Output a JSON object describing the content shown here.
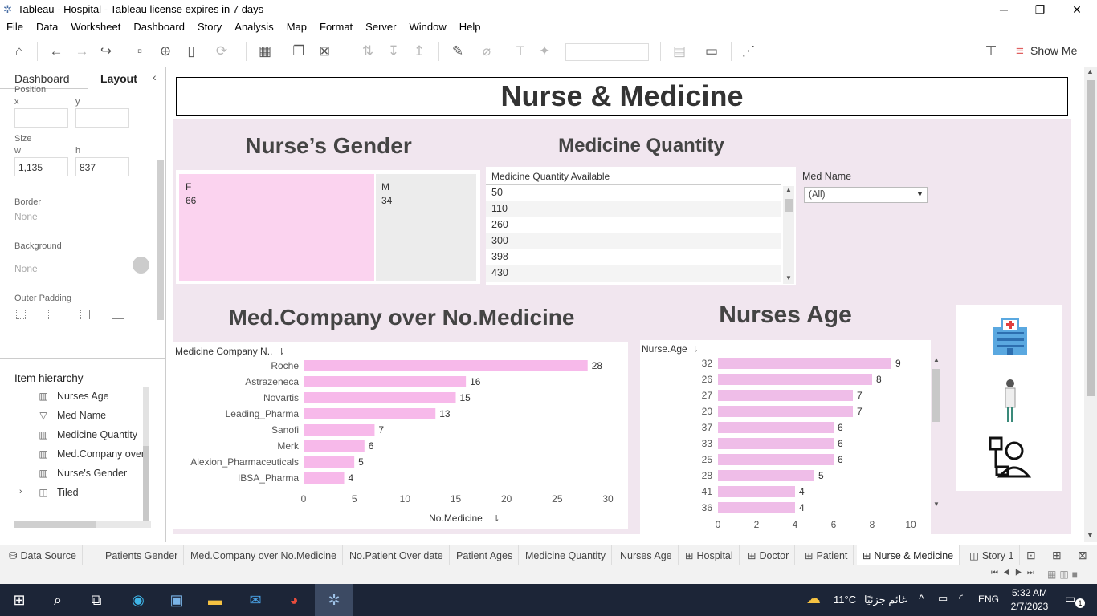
{
  "window": {
    "title": "Tableau - Hospital - Tableau license expires in 7 days",
    "minimize": "─",
    "maximize": "❐",
    "close": "✕"
  },
  "menu": [
    "File",
    "Data",
    "Worksheet",
    "Dashboard",
    "Story",
    "Analysis",
    "Map",
    "Format",
    "Server",
    "Window",
    "Help"
  ],
  "toolbar": {
    "show_me": "Show Me"
  },
  "left_pane": {
    "tabs": {
      "dashboard": "Dashboard",
      "layout": "Layout"
    },
    "position_label": "Position",
    "x_label": "x",
    "y_label": "y",
    "size_label": "Size",
    "w_label": "w",
    "h_label": "h",
    "w_value": "1,135",
    "h_value": "837",
    "border_label": "Border",
    "border_value": "None",
    "background_label": "Background",
    "background_value": "None",
    "outer_padding_label": "Outer Padding",
    "item_hierarchy_title": "Item hierarchy",
    "hierarchy": [
      {
        "label": "Nurses Age",
        "icon": "chart-icon"
      },
      {
        "label": "Med Name",
        "icon": "filter-icon"
      },
      {
        "label": "Medicine Quantity",
        "icon": "chart-icon"
      },
      {
        "label": "Med.Company over",
        "icon": "chart-icon"
      },
      {
        "label": "Nurse's Gender",
        "icon": "chart-icon"
      },
      {
        "label": "Tiled",
        "icon": "tiled-icon"
      }
    ]
  },
  "dashboard": {
    "title": "Nurse & Medicine",
    "gender": {
      "title": "Nurse’s Gender",
      "cells": [
        {
          "label": "F",
          "value": "66"
        },
        {
          "label": "M",
          "value": "34"
        }
      ],
      "colors": {
        "F": "#fbd3ef",
        "M": "#ececec"
      }
    },
    "medicine_quantity": {
      "title": "Medicine Quantity",
      "header": "Medicine Quantity Available",
      "rows": [
        "50",
        "110",
        "260",
        "300",
        "398",
        "430"
      ]
    },
    "filter": {
      "label": "Med Name",
      "value": "(All)"
    },
    "company_chart_title": "Med.Company over No.Medicine",
    "age_chart_title": "Nurses Age"
  },
  "chart_data": [
    {
      "type": "bar",
      "orientation": "horizontal",
      "title": "Med.Company over No.Medicine",
      "ylabel": "Medicine Company N..",
      "xlabel": "No.Medicine",
      "categories": [
        "Roche",
        "Astrazeneca",
        "Novartis",
        "Leading_Pharma",
        "Sanofi",
        "Merk",
        "Alexion_Pharmaceuticals",
        "IBSA_Pharma"
      ],
      "values": [
        28,
        16,
        15,
        13,
        7,
        6,
        5,
        4
      ],
      "xlim": [
        0,
        30
      ],
      "xticks": [
        "0",
        "5",
        "10",
        "15",
        "20",
        "25",
        "30"
      ],
      "color": "#f7b9ea"
    },
    {
      "type": "bar",
      "orientation": "horizontal",
      "title": "Nurses Age",
      "ylabel": "Nurse.Age",
      "categories": [
        "32",
        "26",
        "27",
        "20",
        "37",
        "33",
        "25",
        "28",
        "41",
        "36"
      ],
      "values": [
        9,
        8,
        7,
        7,
        6,
        6,
        6,
        5,
        4,
        4
      ],
      "xlim": [
        0,
        10
      ],
      "xticks": [
        "0",
        "2",
        "4",
        "6",
        "8",
        "10"
      ],
      "color": "#efbde8"
    }
  ],
  "sheet_tabs": [
    "Data Source",
    "Patients Gender",
    "Med.Company over No.Medicine",
    "No.Patient Over date",
    "Patient Ages",
    "Medicine Quantity",
    "Nurses Age",
    "Hospital",
    "Doctor",
    "Patient",
    "Nurse & Medicine",
    "Story 1"
  ],
  "active_tab": "Nurse & Medicine",
  "taskbar": {
    "weather": "11°C",
    "weather_text": "غائم جزئيًا",
    "lang": "ENG",
    "time": "5:32 AM",
    "date": "2/7/2023",
    "notif": "1"
  }
}
